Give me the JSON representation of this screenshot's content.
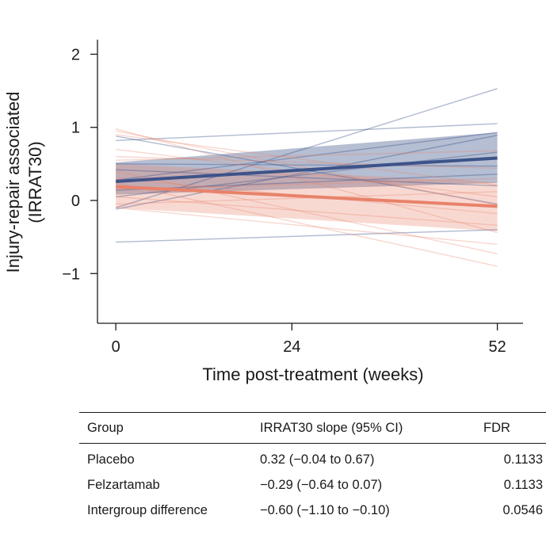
{
  "chart_data": {
    "type": "line",
    "ylabel_line1": "Injury-repair associated",
    "ylabel_line2": "(IRRAT30)",
    "xlabel": "Time post-treatment (weeks)",
    "x_ticks": [
      0,
      24,
      52
    ],
    "y_ticks": [
      2,
      1,
      0,
      -1
    ],
    "xlim": [
      -2.5,
      55.5
    ],
    "ylim": [
      -1.68,
      2.2
    ],
    "colors": {
      "blue": "#3d5389",
      "orange": "#e8826a"
    },
    "series": [
      {
        "name": "Placebo",
        "color": "#3d5389",
        "mean": [
          [
            0,
            0.26
          ],
          [
            52,
            0.58
          ]
        ],
        "band_low": [
          [
            0,
            0.08
          ],
          [
            52,
            0.24
          ]
        ],
        "band_high": [
          [
            0,
            0.52
          ],
          [
            52,
            0.93
          ]
        ],
        "individual": [
          [
            [
              0,
              0.82
            ],
            [
              52,
              1.05
            ]
          ],
          [
            [
              0,
              -0.1
            ],
            [
              52,
              1.53
            ]
          ],
          [
            [
              0,
              0.88
            ],
            [
              52,
              -0.05
            ]
          ],
          [
            [
              0,
              0.28
            ],
            [
              52,
              0.93
            ]
          ],
          [
            [
              0,
              0.5
            ],
            [
              52,
              0.47
            ]
          ],
          [
            [
              0,
              -0.12
            ],
            [
              52,
              0.89
            ]
          ],
          [
            [
              0,
              0.05
            ],
            [
              52,
              0.66
            ]
          ],
          [
            [
              0,
              -0.57
            ],
            [
              52,
              -0.4
            ]
          ],
          [
            [
              0,
              0.42
            ],
            [
              52,
              0.2
            ]
          ],
          [
            [
              0,
              0.14
            ],
            [
              52,
              0.36
            ]
          ]
        ]
      },
      {
        "name": "Felzartamab",
        "color": "#e8826a",
        "mean": [
          [
            0,
            0.19
          ],
          [
            52,
            -0.08
          ]
        ],
        "band_low": [
          [
            0,
            -0.1
          ],
          [
            52,
            -0.42
          ]
        ],
        "band_high": [
          [
            0,
            0.5
          ],
          [
            52,
            0.25
          ]
        ],
        "individual": [
          [
            [
              0,
              0.98
            ],
            [
              52,
              -0.44
            ]
          ],
          [
            [
              0,
              0.95
            ],
            [
              52,
              -0.06
            ]
          ],
          [
            [
              0,
              0.9
            ],
            [
              52,
              0.21
            ]
          ],
          [
            [
              0,
              0.7
            ],
            [
              52,
              0.05
            ]
          ],
          [
            [
              0,
              0.4
            ],
            [
              52,
              -0.73
            ]
          ],
          [
            [
              0,
              0.24
            ],
            [
              52,
              -0.9
            ]
          ],
          [
            [
              0,
              0.05
            ],
            [
              52,
              -0.34
            ]
          ],
          [
            [
              0,
              -0.05
            ],
            [
              52,
              0.12
            ]
          ],
          [
            [
              0,
              0.3
            ],
            [
              52,
              -0.18
            ]
          ],
          [
            [
              0,
              0.6
            ],
            [
              52,
              0.44
            ]
          ],
          [
            [
              0,
              -0.1
            ],
            [
              52,
              -0.6
            ]
          ],
          [
            [
              0,
              0.15
            ],
            [
              52,
              0.3
            ]
          ],
          [
            [
              0,
              0.55
            ],
            [
              52,
              0.68
            ]
          ]
        ]
      }
    ]
  },
  "table": {
    "headers": [
      "Group",
      "IRRAT30 slope (95% CI)",
      "FDR"
    ],
    "rows": [
      [
        "Placebo",
        "0.32 (−0.04 to 0.67)",
        "0.1133"
      ],
      [
        "Felzartamab",
        "−0.29 (−0.64 to 0.07)",
        "0.1133"
      ],
      [
        "Intergroup difference",
        "−0.60 (−1.10 to −0.10)",
        "0.0546"
      ]
    ]
  }
}
